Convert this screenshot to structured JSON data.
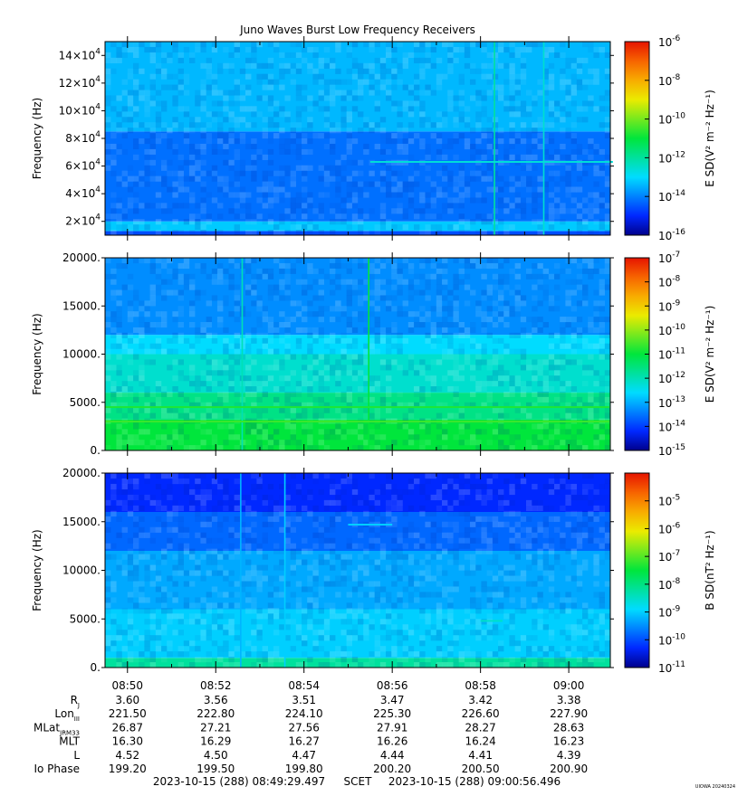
{
  "title": "Juno Waves Burst Low Frequency Receivers",
  "watermark": "UIOWA 20240324",
  "chart_data": [
    {
      "type": "heatmap",
      "name": "electric-high-band",
      "ylabel": "Frequency (Hz)",
      "ylim": [
        10000,
        150000
      ],
      "yticks": [
        {
          "v": 20000,
          "m": "2×10",
          "e": "4"
        },
        {
          "v": 40000,
          "m": "4×10",
          "e": "4"
        },
        {
          "v": 60000,
          "m": "6×10",
          "e": "4"
        },
        {
          "v": 80000,
          "m": "8×10",
          "e": "4"
        },
        {
          "v": 100000,
          "m": "10×10",
          "e": "4"
        },
        {
          "v": 120000,
          "m": "12×10",
          "e": "4"
        },
        {
          "v": 140000,
          "m": "14×10",
          "e": "4"
        }
      ],
      "colorbar": {
        "label": "E SD(V² m⁻² Hz⁻¹)",
        "range": [
          -16,
          -6
        ],
        "scale": "log",
        "ticks": [
          {
            "v": -6,
            "e": "-6"
          },
          {
            "v": -8,
            "e": "-8"
          },
          {
            "v": -10,
            "e": "-10"
          },
          {
            "v": -12,
            "e": "-12"
          },
          {
            "v": -14,
            "e": "-14"
          },
          {
            "v": -16,
            "e": "-16"
          }
        ]
      },
      "bands": [
        {
          "from": 10000,
          "to": 13000,
          "value": -14.6
        },
        {
          "from": 13000,
          "to": 20000,
          "value": -13.2
        },
        {
          "from": 20000,
          "to": 85000,
          "value": -14.2
        },
        {
          "from": 85000,
          "to": 150000,
          "value": -13.4
        }
      ],
      "vertical_features": [
        {
          "time": "08:58:19",
          "value": -12.0
        },
        {
          "time": "08:59:26",
          "value": -12.5
        }
      ],
      "horizontal_features": [
        {
          "from": "08:55:30",
          "to": "09:01:00",
          "freq": 63000,
          "value": -12.6
        }
      ]
    },
    {
      "type": "heatmap",
      "name": "electric-low-band",
      "ylabel": "Frequency (Hz)",
      "ylim": [
        0,
        20000
      ],
      "yticks": [
        {
          "v": 0,
          "m": "0.",
          "e": ""
        },
        {
          "v": 5000,
          "m": "5000.",
          "e": ""
        },
        {
          "v": 10000,
          "m": "10000.",
          "e": ""
        },
        {
          "v": 15000,
          "m": "15000.",
          "e": ""
        },
        {
          "v": 20000,
          "m": "20000.",
          "e": ""
        }
      ],
      "colorbar": {
        "label": "E SD(V² m⁻² Hz⁻¹)",
        "range": [
          -15,
          -7
        ],
        "scale": "log",
        "ticks": [
          {
            "v": -7,
            "e": "-7"
          },
          {
            "v": -8,
            "e": "-8"
          },
          {
            "v": -9,
            "e": "-9"
          },
          {
            "v": -10,
            "e": "-10"
          },
          {
            "v": -11,
            "e": "-11"
          },
          {
            "v": -12,
            "e": "-12"
          },
          {
            "v": -13,
            "e": "-13"
          },
          {
            "v": -14,
            "e": "-14"
          },
          {
            "v": -15,
            "e": "-15"
          }
        ]
      },
      "bands": [
        {
          "from": 0,
          "to": 3200,
          "value": -11.0
        },
        {
          "from": 3200,
          "to": 6000,
          "value": -11.6
        },
        {
          "from": 6000,
          "to": 10000,
          "value": -12.2
        },
        {
          "from": 10000,
          "to": 12000,
          "value": -12.6
        },
        {
          "from": 12000,
          "to": 20000,
          "value": -13.3
        }
      ],
      "vertical_features": [
        {
          "time": "08:52:36",
          "value": -12.0
        },
        {
          "time": "08:55:28",
          "value": -11.0
        }
      ],
      "horizontal_features": [
        {
          "from": "08:49:30",
          "to": "09:00:55",
          "freq": 4500,
          "value": -10.8
        },
        {
          "from": "08:49:30",
          "to": "09:00:55",
          "freq": 3000,
          "value": -10.6
        }
      ]
    },
    {
      "type": "heatmap",
      "name": "magnetic-band",
      "ylabel": "Frequency (Hz)",
      "ylim": [
        0,
        20000
      ],
      "yticks": [
        {
          "v": 0,
          "m": "0.",
          "e": ""
        },
        {
          "v": 5000,
          "m": "5000.",
          "e": ""
        },
        {
          "v": 10000,
          "m": "10000.",
          "e": ""
        },
        {
          "v": 15000,
          "m": "15000.",
          "e": ""
        },
        {
          "v": 20000,
          "m": "20000.",
          "e": ""
        }
      ],
      "colorbar": {
        "label": "B SD(nT² Hz⁻¹)",
        "range": [
          -11,
          -4
        ],
        "scale": "log",
        "ticks": [
          {
            "v": -5,
            "e": "-5"
          },
          {
            "v": -6,
            "e": "-6"
          },
          {
            "v": -7,
            "e": "-7"
          },
          {
            "v": -8,
            "e": "-8"
          },
          {
            "v": -9,
            "e": "-9"
          },
          {
            "v": -10,
            "e": "-10"
          },
          {
            "v": -11,
            "e": "-11"
          }
        ]
      },
      "bands": [
        {
          "from": 0,
          "to": 1000,
          "value": -8.2
        },
        {
          "from": 1000,
          "to": 6000,
          "value": -9.0
        },
        {
          "from": 6000,
          "to": 12000,
          "value": -9.3
        },
        {
          "from": 12000,
          "to": 16000,
          "value": -9.8
        },
        {
          "from": 16000,
          "to": 20000,
          "value": -10.3
        }
      ],
      "vertical_features": [
        {
          "time": "08:53:34",
          "value": -9.0
        },
        {
          "time": "08:52:34",
          "value": -9.2
        }
      ],
      "horizontal_features": [
        {
          "from": "08:55:00",
          "to": "08:56:00",
          "freq": 14700,
          "value": -9.0
        },
        {
          "from": "08:58:00",
          "to": "08:58:30",
          "freq": 4800,
          "value": -8.5
        }
      ]
    }
  ],
  "time_axis": {
    "start": "08:49:29.497",
    "end": "09:00:56.496",
    "ticks": [
      "08:50",
      "08:52",
      "08:54",
      "08:56",
      "08:58",
      "09:00"
    ]
  },
  "ephemeris": {
    "rows": [
      {
        "label": "R",
        "sub": "J",
        "values": [
          "3.60",
          "3.56",
          "3.51",
          "3.47",
          "3.42",
          "3.38"
        ]
      },
      {
        "label": "Lon",
        "sub": "III",
        "values": [
          "221.50",
          "222.80",
          "224.10",
          "225.30",
          "226.60",
          "227.90"
        ]
      },
      {
        "label": "MLat",
        "sub": "JRM33",
        "values": [
          "26.87",
          "27.21",
          "27.56",
          "27.91",
          "28.27",
          "28.63"
        ]
      },
      {
        "label": "MLT",
        "sub": "",
        "values": [
          "16.30",
          "16.29",
          "16.27",
          "16.26",
          "16.24",
          "16.23"
        ]
      },
      {
        "label": "L",
        "sub": "",
        "values": [
          "4.52",
          "4.50",
          "4.47",
          "4.44",
          "4.41",
          "4.39"
        ]
      },
      {
        "label": "Io Phase",
        "sub": "",
        "values": [
          "199.20",
          "199.50",
          "199.80",
          "200.20",
          "200.50",
          "200.90"
        ]
      }
    ]
  },
  "footer": {
    "start": "2023-10-15 (288) 08:49:29.497",
    "scet": "SCET",
    "end": "2023-10-15 (288) 09:00:56.496"
  }
}
